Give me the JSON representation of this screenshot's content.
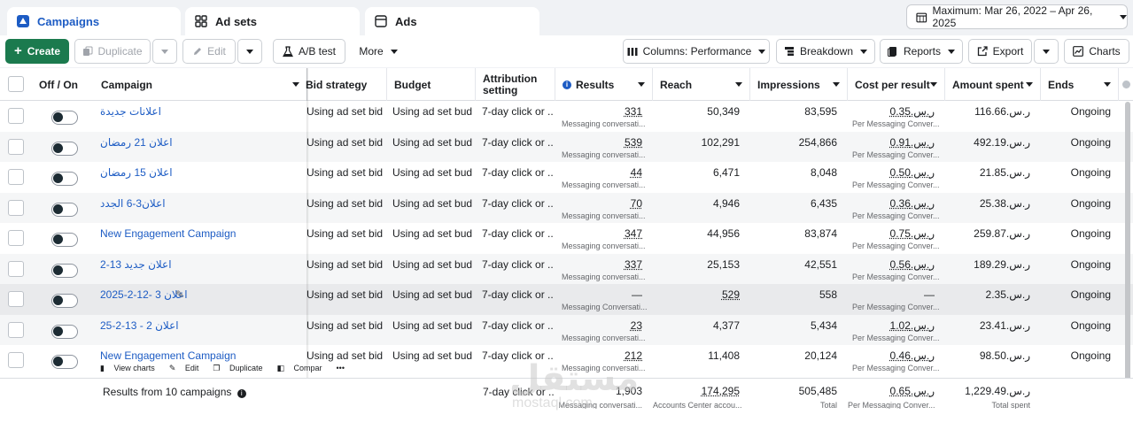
{
  "tabs": [
    {
      "label": "Campaigns",
      "active": true
    },
    {
      "label": "Ad sets",
      "active": false
    },
    {
      "label": "Ads",
      "active": false
    }
  ],
  "date_range": "Maximum: Mar 26, 2022 – Apr 26, 2025",
  "toolbar": {
    "create": "Create",
    "duplicate": "Duplicate",
    "edit": "Edit",
    "ab_test": "A/B test",
    "more": "More",
    "columns": "Columns: Performance",
    "breakdown": "Breakdown",
    "reports": "Reports",
    "export": "Export",
    "charts": "Charts"
  },
  "columns": {
    "off_on": "Off / On",
    "campaign": "Campaign",
    "bid_strategy": "Bid strategy",
    "budget": "Budget",
    "attribution": "Attribution setting",
    "results": "Results",
    "reach": "Reach",
    "impressions": "Impressions",
    "cost_per_result": "Cost per result",
    "amount_spent": "Amount spent",
    "ends": "Ends"
  },
  "rows": [
    {
      "name": "اعلانات جديدة",
      "bid": "Using ad set bid ...",
      "budget": "Using ad set bud...",
      "attr": "7-day click or ...",
      "results": "331",
      "results_sub": "Messaging conversati...",
      "reach": "50,349",
      "impr": "83,595",
      "cpr": "ر.س.0.35",
      "cpr_sub": "Per Messaging Conver...",
      "spent": "ر.س.116.66",
      "ends": "Ongoing"
    },
    {
      "name": "اعلان 21 رمضان",
      "bid": "Using ad set bid ...",
      "budget": "Using ad set bud...",
      "attr": "7-day click or ...",
      "results": "539",
      "results_sub": "Messaging conversati...",
      "reach": "102,291",
      "impr": "254,866",
      "cpr": "ر.س.0.91",
      "cpr_sub": "Per Messaging Conver...",
      "spent": "ر.س.492.19",
      "ends": "Ongoing"
    },
    {
      "name": "اعلان 15 رمضان",
      "bid": "Using ad set bid ...",
      "budget": "Using ad set bud...",
      "attr": "7-day click or ...",
      "results": "44",
      "results_sub": "Messaging conversati...",
      "reach": "6,471",
      "impr": "8,048",
      "cpr": "ر.س.0.50",
      "cpr_sub": "Per Messaging Conver...",
      "spent": "ر.س.21.85",
      "ends": "Ongoing"
    },
    {
      "name": "اعلان3-6 الجدد",
      "bid": "Using ad set bid ...",
      "budget": "Using ad set bud...",
      "attr": "7-day click or ...",
      "results": "70",
      "results_sub": "Messaging conversati...",
      "reach": "4,946",
      "impr": "6,435",
      "cpr": "ر.س.0.36",
      "cpr_sub": "Per Messaging Conver...",
      "spent": "ر.س.25.38",
      "ends": "Ongoing"
    },
    {
      "name": "New Engagement Campaign",
      "bid": "Using ad set bid ...",
      "budget": "Using ad set bud...",
      "attr": "7-day click or ...",
      "results": "347",
      "results_sub": "Messaging conversati...",
      "reach": "44,956",
      "impr": "83,874",
      "cpr": "ر.س.0.75",
      "cpr_sub": "Per Messaging Conver...",
      "spent": "ر.س.259.87",
      "ends": "Ongoing"
    },
    {
      "name": "اعلان جديد 13-2",
      "bid": "Using ad set bid ...",
      "budget": "Using ad set bud...",
      "attr": "7-day click or ...",
      "results": "337",
      "results_sub": "Messaging conversati...",
      "reach": "25,153",
      "impr": "42,551",
      "cpr": "ر.س.0.56",
      "cpr_sub": "Per Messaging Conver...",
      "spent": "ر.س.189.29",
      "ends": "Ongoing"
    },
    {
      "name": "اعلان 3 -12-2-2025",
      "bid": "Using ad set bid ...",
      "budget": "Using ad set bud...",
      "attr": "7-day click or ...",
      "results": "—",
      "results_sub": "Messaging Conversati...",
      "reach": "529",
      "impr": "558",
      "cpr": "—",
      "cpr_sub": "Per Messaging Conver...",
      "spent": "ر.س.2.35",
      "ends": "Ongoing"
    },
    {
      "name": "اعلان 2 - 13-2-25",
      "bid": "Using ad set bid ...",
      "budget": "Using ad set bud...",
      "attr": "7-day click or ...",
      "results": "23",
      "results_sub": "Messaging conversati...",
      "reach": "4,377",
      "impr": "5,434",
      "cpr": "ر.س.1.02",
      "cpr_sub": "Per Messaging Conver...",
      "spent": "ر.س.23.41",
      "ends": "Ongoing"
    },
    {
      "name": "New Engagement Campaign",
      "bid": "Using ad set bid ...",
      "budget": "Using ad set bud...",
      "attr": "7-day click or ...",
      "results": "212",
      "results_sub": "Messaging conversati...",
      "reach": "11,408",
      "impr": "20,124",
      "cpr": "ر.س.0.46",
      "cpr_sub": "Per Messaging Conver...",
      "spent": "ر.س.98.50",
      "ends": "Ongoing"
    }
  ],
  "row_actions": {
    "view_charts": "View charts",
    "edit": "Edit",
    "duplicate": "Duplicate",
    "compare": "Compar"
  },
  "totals": {
    "label": "Results from 10 campaigns",
    "attr": "7-day click or ...",
    "results": "1,903",
    "results_sub": "Messaging conversati...",
    "reach": "174,295",
    "reach_sub": "Accounts Center accou...",
    "impr": "505,485",
    "impr_sub": "Total",
    "cpr": "ر.س.0.65",
    "cpr_sub": "Per Messaging Conver...",
    "spent": "ر.س.1,229.49",
    "spent_sub": "Total spent"
  },
  "watermark": {
    "arabic": "مستقل",
    "latin": "mostaql.com"
  },
  "colors": {
    "accent": "#1d5cc4",
    "create": "#1b7a4e"
  }
}
